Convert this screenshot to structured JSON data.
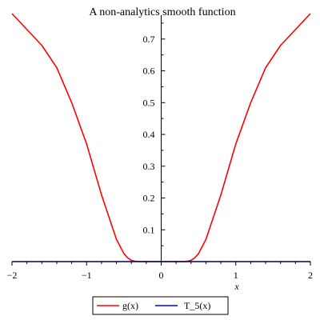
{
  "chart_data": {
    "type": "line",
    "title": "A non-analytics smooth function",
    "xlabel": "x",
    "ylabel": "",
    "xlim": [
      -2,
      2
    ],
    "ylim": [
      0,
      0.775
    ],
    "x_ticks": [
      -2,
      -1,
      0,
      1,
      2
    ],
    "x_tick_labels": [
      "−2",
      "−1",
      "0",
      "1",
      "2"
    ],
    "y_ticks": [
      0.1,
      0.2,
      0.3,
      0.4,
      0.5,
      0.6,
      0.7
    ],
    "y_tick_labels": [
      "0.1",
      "0.2",
      "0.3",
      "0.4",
      "0.5",
      "0.6",
      "0.7"
    ],
    "grid": false,
    "legend_position": "bottom-center",
    "x": [
      -2.0,
      -1.8,
      -1.6,
      -1.4,
      -1.2,
      -1.0,
      -0.9,
      -0.8,
      -0.7,
      -0.6,
      -0.5,
      -0.45,
      -0.4,
      -0.35,
      -0.3,
      0.0,
      0.3,
      0.35,
      0.4,
      0.45,
      0.5,
      0.6,
      0.7,
      0.8,
      0.9,
      1.0,
      1.2,
      1.4,
      1.6,
      1.8,
      2.0
    ],
    "series": [
      {
        "name": "g(x)",
        "color": "#ff0000",
        "values": [
          0.78,
          0.73,
          0.68,
          0.61,
          0.5,
          0.37,
          0.29,
          0.21,
          0.14,
          0.07,
          0.025,
          0.012,
          0.004,
          0.001,
          0.0,
          0.0,
          0.0,
          0.001,
          0.004,
          0.012,
          0.025,
          0.07,
          0.14,
          0.21,
          0.29,
          0.37,
          0.5,
          0.61,
          0.68,
          0.73,
          0.78
        ]
      },
      {
        "name": "T_5(x)",
        "color": "#0000ff",
        "values": [
          0.0,
          0.0,
          0.0,
          0.0,
          0.0,
          0.0,
          0.0,
          0.0,
          0.0,
          0.0,
          0.0,
          0.0,
          0.0,
          0.0,
          0.0,
          0.0,
          0.0,
          0.0,
          0.0,
          0.0,
          0.0,
          0.0,
          0.0,
          0.0,
          0.0,
          0.0,
          0.0,
          0.0,
          0.0,
          0.0,
          0.0
        ]
      }
    ]
  }
}
